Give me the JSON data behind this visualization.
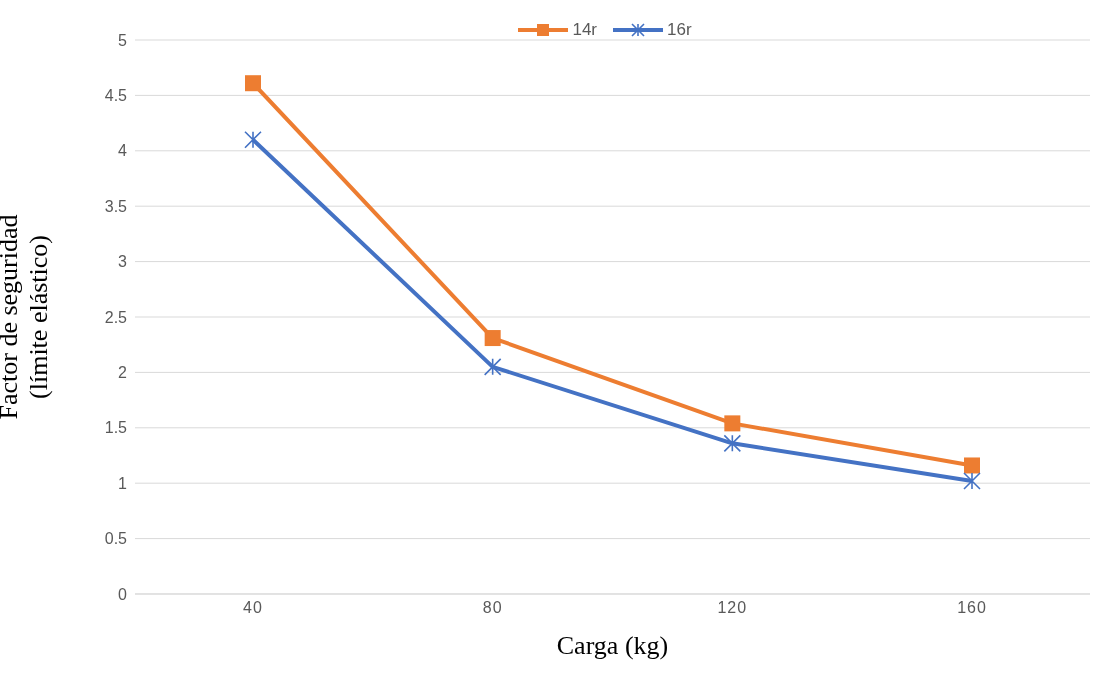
{
  "chart_data": {
    "type": "line",
    "xlabel": "Carga (kg)",
    "ylabel": "Factor de seguridad\n(límite elástico)",
    "categories": [
      "40",
      "80",
      "120",
      "160"
    ],
    "series": [
      {
        "name": "14r",
        "color": "#ed7d31",
        "marker": "square",
        "values": [
          4.61,
          2.31,
          1.54,
          1.16
        ]
      },
      {
        "name": "16r",
        "color": "#4472c4",
        "marker": "cross",
        "values": [
          4.1,
          2.05,
          1.36,
          1.02
        ]
      }
    ],
    "ylim": [
      0,
      5
    ],
    "yticks": [
      0,
      0.5,
      1,
      1.5,
      2,
      2.5,
      3,
      3.5,
      4,
      4.5,
      5
    ],
    "grid": "y",
    "legend": "top"
  }
}
